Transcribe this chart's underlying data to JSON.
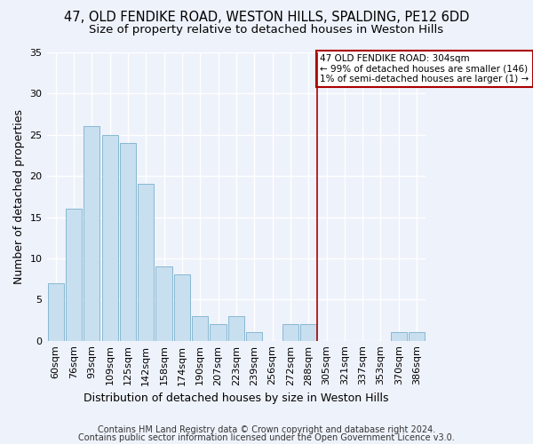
{
  "title1": "47, OLD FENDIKE ROAD, WESTON HILLS, SPALDING, PE12 6DD",
  "title2": "Size of property relative to detached houses in Weston Hills",
  "xlabel": "Distribution of detached houses by size in Weston Hills",
  "ylabel": "Number of detached properties",
  "footer1": "Contains HM Land Registry data © Crown copyright and database right 2024.",
  "footer2": "Contains public sector information licensed under the Open Government Licence v3.0.",
  "categories": [
    "60sqm",
    "76sqm",
    "93sqm",
    "109sqm",
    "125sqm",
    "142sqm",
    "158sqm",
    "174sqm",
    "190sqm",
    "207sqm",
    "223sqm",
    "239sqm",
    "256sqm",
    "272sqm",
    "288sqm",
    "305sqm",
    "321sqm",
    "337sqm",
    "353sqm",
    "370sqm",
    "386sqm"
  ],
  "values": [
    7,
    16,
    26,
    25,
    24,
    19,
    9,
    8,
    3,
    2,
    3,
    1,
    0,
    2,
    2,
    0,
    0,
    0,
    0,
    1,
    1
  ],
  "bar_color": "#c8dff0",
  "bar_edge_color": "#7ab0cc",
  "annotation_text": "47 OLD FENDIKE ROAD: 304sqm\n← 99% of detached houses are smaller (146)\n1% of semi-detached houses are larger (1) →",
  "annotation_box_color": "#ffffff",
  "annotation_border_color": "#aa0000",
  "vline_color": "#aa0000",
  "vline_x_index": 15,
  "ylim": [
    0,
    35
  ],
  "yticks": [
    0,
    5,
    10,
    15,
    20,
    25,
    30,
    35
  ],
  "background_color": "#eef2fb",
  "grid_color": "#ffffff",
  "title_fontsize": 10.5,
  "subtitle_fontsize": 9.5,
  "axis_label_fontsize": 9,
  "tick_fontsize": 8,
  "footer_fontsize": 7
}
